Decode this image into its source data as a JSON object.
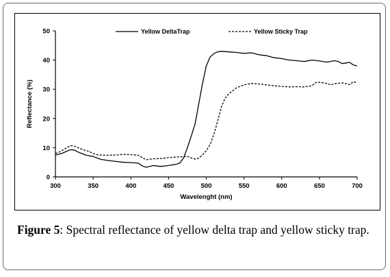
{
  "chart_data": {
    "type": "line",
    "xlabel": "Wavelenght (nm)",
    "ylabel": "Reflectance (%)",
    "xlim": [
      300,
      700
    ],
    "ylim": [
      0,
      50
    ],
    "xticks": [
      300,
      350,
      400,
      450,
      500,
      550,
      600,
      650,
      700
    ],
    "yticks": [
      0,
      10,
      20,
      30,
      40,
      50
    ],
    "grid": false,
    "legend_position": "top",
    "series": [
      {
        "name": "Yellow DeltaTrap",
        "style": "solid",
        "x": [
          300,
          305,
          310,
          315,
          320,
          325,
          330,
          335,
          340,
          345,
          350,
          355,
          360,
          370,
          380,
          390,
          400,
          410,
          415,
          420,
          425,
          430,
          435,
          440,
          450,
          460,
          465,
          470,
          475,
          480,
          485,
          490,
          495,
          500,
          505,
          510,
          515,
          520,
          530,
          540,
          550,
          560,
          570,
          580,
          590,
          600,
          610,
          620,
          630,
          640,
          650,
          660,
          670,
          675,
          680,
          690,
          695,
          700
        ],
        "y": [
          7.5,
          7.8,
          8.2,
          8.8,
          9.3,
          9.2,
          8.5,
          8.0,
          7.5,
          7.2,
          7.0,
          6.5,
          6.0,
          5.6,
          5.3,
          5.0,
          4.9,
          4.7,
          3.8,
          3.3,
          3.6,
          3.9,
          3.7,
          3.6,
          3.9,
          4.3,
          4.8,
          6.5,
          10.0,
          14.0,
          18.0,
          25.0,
          32.0,
          38.0,
          41.0,
          42.2,
          42.8,
          43.0,
          42.8,
          42.6,
          42.3,
          42.5,
          41.8,
          41.5,
          40.8,
          40.5,
          40.0,
          39.8,
          39.5,
          40.0,
          39.7,
          39.3,
          39.8,
          39.5,
          38.8,
          39.2,
          38.3,
          38.0
        ]
      },
      {
        "name": "Yellow Sticky Trap",
        "style": "dashed",
        "x": [
          300,
          305,
          310,
          315,
          320,
          325,
          330,
          335,
          340,
          345,
          350,
          355,
          360,
          370,
          380,
          390,
          400,
          410,
          420,
          430,
          440,
          450,
          460,
          470,
          475,
          480,
          485,
          490,
          495,
          500,
          505,
          510,
          515,
          520,
          525,
          530,
          540,
          550,
          560,
          570,
          580,
          590,
          600,
          610,
          620,
          630,
          640,
          645,
          650,
          660,
          665,
          670,
          680,
          690,
          695,
          700
        ],
        "y": [
          8.0,
          8.5,
          9.2,
          10.0,
          10.7,
          10.5,
          10.0,
          9.5,
          9.0,
          8.7,
          8.0,
          7.6,
          7.5,
          7.4,
          7.5,
          7.7,
          7.6,
          7.4,
          5.9,
          6.2,
          6.3,
          6.6,
          6.8,
          6.9,
          7.0,
          6.5,
          6.1,
          6.4,
          7.5,
          9.0,
          11.0,
          14.5,
          19.0,
          24.0,
          27.0,
          28.5,
          30.5,
          31.5,
          32.0,
          31.8,
          31.5,
          31.2,
          31.0,
          30.8,
          30.9,
          30.8,
          31.2,
          32.3,
          32.4,
          32.0,
          31.5,
          31.9,
          32.2,
          31.6,
          32.6,
          32.2
        ]
      }
    ]
  },
  "caption": {
    "label": "Figure 5",
    "text": ": Spectral reflectance of yellow delta trap and yellow sticky trap."
  }
}
